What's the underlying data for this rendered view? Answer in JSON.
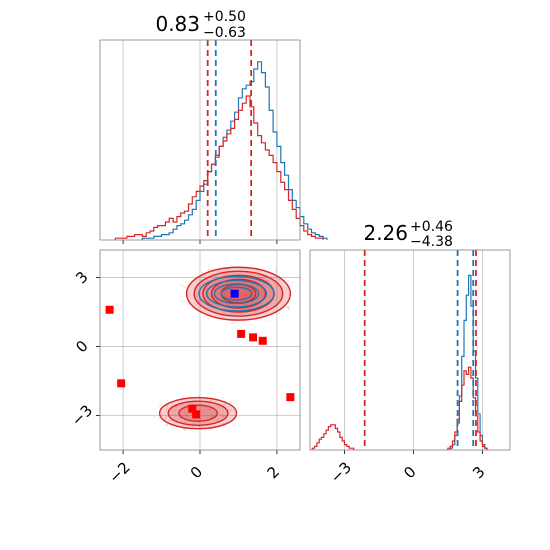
{
  "chart_data": [
    {
      "panel": "marginal-x",
      "type": "histogram",
      "title": {
        "value": "0.83",
        "sup": "+0.50",
        "sub": "−0.63"
      },
      "xlim": [
        -2.6,
        2.6
      ],
      "x_ticks": [
        -2,
        0,
        2
      ],
      "series": [
        {
          "color": "#1f77b4",
          "bins_start": -1.5,
          "bin_width": 0.1,
          "values": [
            0.01,
            0.01,
            0.01,
            0.02,
            0.02,
            0.03,
            0.03,
            0.04,
            0.06,
            0.08,
            0.09,
            0.11,
            0.14,
            0.17,
            0.22,
            0.27,
            0.31,
            0.38,
            0.42,
            0.47,
            0.52,
            0.57,
            0.61,
            0.66,
            0.71,
            0.79,
            0.84,
            0.86,
            0.88,
            0.95,
            0.99,
            0.93,
            0.85,
            0.72,
            0.6,
            0.52,
            0.43,
            0.36,
            0.28,
            0.22,
            0.18,
            0.13,
            0.09,
            0.06,
            0.04,
            0.03,
            0.02,
            0.01
          ]
        },
        {
          "color": "#d62728",
          "bins_start": -2.2,
          "bin_width": 0.1,
          "values": [
            0.01,
            0.01,
            0.01,
            0.02,
            0.02,
            0.03,
            0.03,
            0.02,
            0.04,
            0.05,
            0.07,
            0.08,
            0.08,
            0.1,
            0.12,
            0.1,
            0.13,
            0.15,
            0.16,
            0.2,
            0.24,
            0.27,
            0.3,
            0.33,
            0.38,
            0.42,
            0.46,
            0.52,
            0.55,
            0.59,
            0.62,
            0.67,
            0.72,
            0.76,
            0.8,
            0.74,
            0.65,
            0.58,
            0.54,
            0.5,
            0.47,
            0.43,
            0.38,
            0.32,
            0.28,
            0.22,
            0.17,
            0.12,
            0.08,
            0.05,
            0.03,
            0.02,
            0.01,
            0.01
          ]
        }
      ],
      "vlines": [
        {
          "color": "#d62728",
          "x": 0.2
        },
        {
          "color": "#1f77b4",
          "x": 0.41
        },
        {
          "color": "#d62728",
          "x": 1.33
        }
      ]
    },
    {
      "panel": "joint",
      "type": "contour",
      "xlim": [
        -2.6,
        2.6
      ],
      "ylim": [
        -4.5,
        4.2
      ],
      "x_ticks": [
        -2,
        0,
        2
      ],
      "y_ticks": [
        -3,
        0,
        3
      ],
      "red_modes": [
        {
          "cx": 1.0,
          "cy": 2.3,
          "rx": [
            2.7,
            2.3,
            1.85,
            1.4,
            0.9
          ],
          "ry": [
            2.3,
            1.95,
            1.6,
            1.25,
            0.8
          ]
        },
        {
          "cx": -0.05,
          "cy": -2.9,
          "rx": [
            2.0,
            1.55,
            1.0
          ],
          "ry": [
            1.35,
            1.05,
            0.7
          ]
        }
      ],
      "blue_mode": {
        "cx": 0.95,
        "cy": 2.3,
        "rx": [
          1.95,
          1.55,
          1.15,
          0.8
        ],
        "ry": [
          1.5,
          1.15,
          0.85,
          0.55
        ]
      },
      "red_squares": [
        [
          -2.35,
          1.6
        ],
        [
          -2.05,
          -1.6
        ],
        [
          1.07,
          0.55
        ],
        [
          1.38,
          0.4
        ],
        [
          1.63,
          0.25
        ],
        [
          2.35,
          -2.2
        ],
        [
          -0.2,
          -2.7
        ],
        [
          -0.1,
          -2.95
        ]
      ],
      "blue_squares": [
        [
          0.9,
          2.3
        ]
      ]
    },
    {
      "panel": "marginal-y",
      "type": "histogram",
      "title": {
        "value": "2.26",
        "sup": "+0.46",
        "sub": "−4.38"
      },
      "xlim": [
        -4.5,
        4.2
      ],
      "x_ticks": [
        -3,
        0,
        3
      ],
      "series": [
        {
          "color": "#1f77b4",
          "bins_start": 1.6,
          "bin_width": 0.1,
          "values": [
            0.01,
            0.03,
            0.08,
            0.15,
            0.3,
            0.52,
            0.72,
            0.86,
            0.97,
            0.8,
            0.55,
            0.4,
            0.2,
            0.08,
            0.03,
            0.01
          ]
        },
        {
          "color": "#d62728",
          "bins_start": -4.4,
          "bin_width": 0.1,
          "values": [
            0.01,
            0.02,
            0.04,
            0.06,
            0.07,
            0.09,
            0.11,
            0.13,
            0.14,
            0.14,
            0.12,
            0.1,
            0.07,
            0.05,
            0.03,
            0.02,
            0.01,
            0.01
          ]
        },
        {
          "color": "#d62728",
          "bins_start": 1.5,
          "bin_width": 0.1,
          "values": [
            0.01,
            0.02,
            0.05,
            0.1,
            0.17,
            0.27,
            0.36,
            0.44,
            0.42,
            0.46,
            0.4,
            0.29,
            0.19,
            0.1,
            0.05,
            0.02,
            0.01
          ]
        }
      ],
      "vlines": [
        {
          "color": "#d62728",
          "x": -2.12
        },
        {
          "color": "#1f77b4",
          "x": 1.92
        },
        {
          "color": "#1f77b4",
          "x": 2.6
        },
        {
          "color": "#d62728",
          "x": 2.72
        }
      ]
    }
  ]
}
